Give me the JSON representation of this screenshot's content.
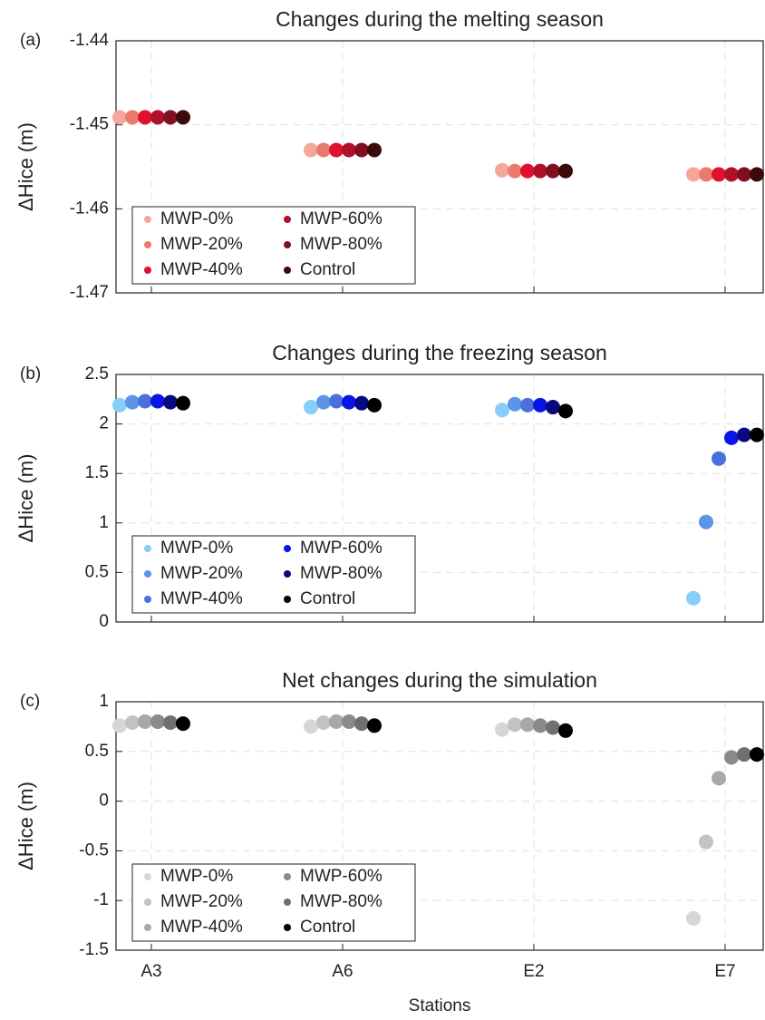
{
  "chart_data": [
    {
      "type": "dot",
      "panel_label": "(a)",
      "title": "Changes during the melting season",
      "ylabel": "ΔHice (m)",
      "ylim": [
        -1.47,
        -1.44
      ],
      "yticks": [
        -1.47,
        -1.46,
        -1.45,
        -1.44
      ],
      "grid": true,
      "legend": "lower left",
      "series": [
        {
          "name": "MWP-0%",
          "color": "#f4a79a",
          "values": [
            -1.4491,
            -1.453,
            -1.4554,
            -1.4559
          ]
        },
        {
          "name": "MWP-20%",
          "color": "#ea7a6a",
          "values": [
            -1.4491,
            -1.453,
            -1.4555,
            -1.4559
          ]
        },
        {
          "name": "MWP-40%",
          "color": "#e0102f",
          "values": [
            -1.4491,
            -1.453,
            -1.4555,
            -1.4559
          ]
        },
        {
          "name": "MWP-60%",
          "color": "#b0102a",
          "values": [
            -1.4491,
            -1.453,
            -1.4555,
            -1.4559
          ]
        },
        {
          "name": "MWP-80%",
          "color": "#7e1020",
          "values": [
            -1.4491,
            -1.453,
            -1.4555,
            -1.4559
          ]
        },
        {
          "name": "Control",
          "color": "#3d0a0a",
          "values": [
            -1.4491,
            -1.453,
            -1.4555,
            -1.4559
          ]
        }
      ]
    },
    {
      "type": "dot",
      "panel_label": "(b)",
      "title": "Changes during the freezing season",
      "ylabel": "ΔHice (m)",
      "ylim": [
        0,
        2.5
      ],
      "yticks": [
        0,
        0.5,
        1,
        1.5,
        2,
        2.5
      ],
      "grid": true,
      "legend": "lower left",
      "series": [
        {
          "name": "MWP-0%",
          "color": "#87cefa",
          "values": [
            2.19,
            2.17,
            2.14,
            0.24
          ]
        },
        {
          "name": "MWP-20%",
          "color": "#5a95e8",
          "values": [
            2.22,
            2.22,
            2.2,
            1.01
          ]
        },
        {
          "name": "MWP-40%",
          "color": "#4a70dc",
          "values": [
            2.23,
            2.23,
            2.19,
            1.65
          ]
        },
        {
          "name": "MWP-60%",
          "color": "#0a14e6",
          "values": [
            2.23,
            2.22,
            2.19,
            1.86
          ]
        },
        {
          "name": "MWP-80%",
          "color": "#0a0a80",
          "values": [
            2.22,
            2.21,
            2.17,
            1.89
          ]
        },
        {
          "name": "Control",
          "color": "#000000",
          "values": [
            2.21,
            2.19,
            2.13,
            1.89
          ]
        }
      ]
    },
    {
      "type": "dot",
      "panel_label": "(c)",
      "title": "Net changes during the simulation",
      "ylabel": "ΔHice (m)",
      "xlabel": "Stations",
      "categories": [
        "A3",
        "A6",
        "E2",
        "E7"
      ],
      "ylim": [
        -1.5,
        1
      ],
      "yticks": [
        -1.5,
        -1,
        -0.5,
        0,
        0.5,
        1
      ],
      "grid": true,
      "legend": "lower left",
      "series": [
        {
          "name": "MWP-0%",
          "color": "#d6d6d6",
          "values": [
            0.76,
            0.75,
            0.72,
            -1.18
          ]
        },
        {
          "name": "MWP-20%",
          "color": "#c2c2c2",
          "values": [
            0.79,
            0.79,
            0.77,
            -0.41
          ]
        },
        {
          "name": "MWP-40%",
          "color": "#a8a8a8",
          "values": [
            0.8,
            0.8,
            0.77,
            0.23
          ]
        },
        {
          "name": "MWP-60%",
          "color": "#8a8a8a",
          "values": [
            0.8,
            0.8,
            0.76,
            0.44
          ]
        },
        {
          "name": "MWP-80%",
          "color": "#707070",
          "values": [
            0.79,
            0.78,
            0.74,
            0.47
          ]
        },
        {
          "name": "Control",
          "color": "#000000",
          "values": [
            0.78,
            0.76,
            0.71,
            0.47
          ]
        }
      ]
    }
  ]
}
